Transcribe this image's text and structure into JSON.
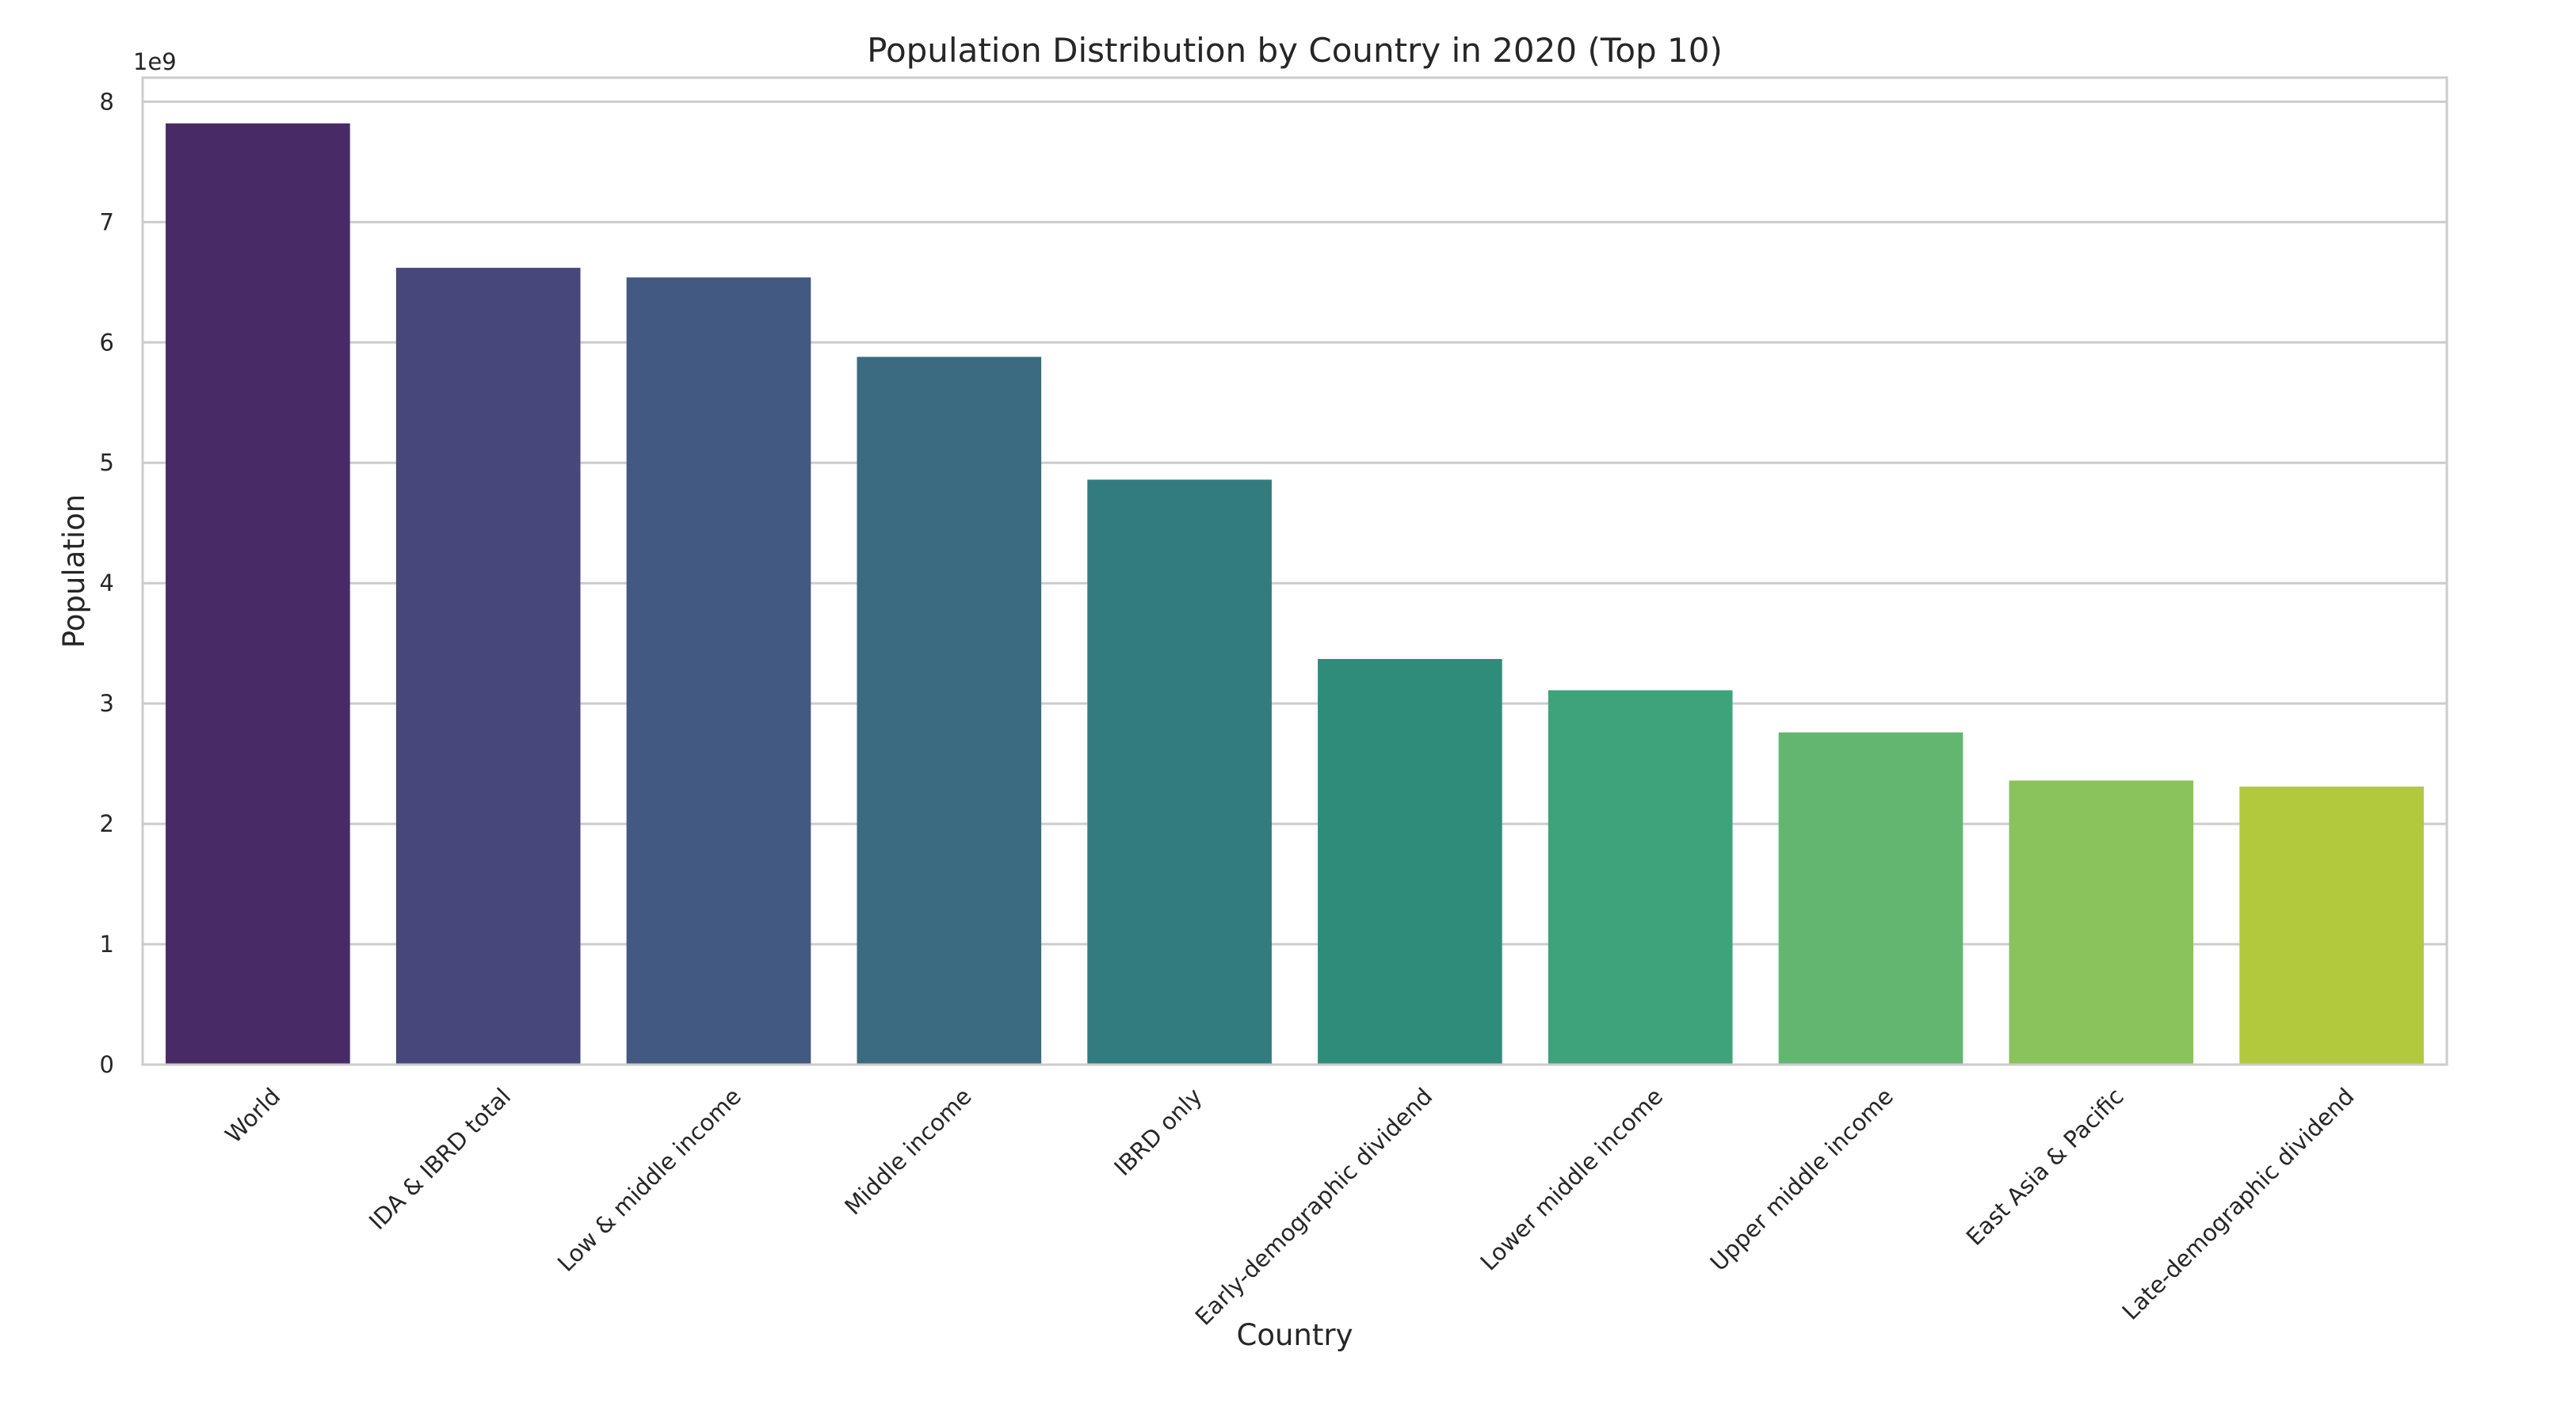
{
  "chart_data": {
    "type": "bar",
    "title": "Population Distribution by Country in 2020 (Top 10)",
    "xlabel": "Country",
    "ylabel": "Population",
    "y_offset_label": "1e9",
    "y_scale": 1000000000,
    "ylim": [
      0,
      8.2
    ],
    "yticks": [
      0,
      1,
      2,
      3,
      4,
      5,
      6,
      7,
      8
    ],
    "ytick_labels": [
      "0",
      "1",
      "2",
      "3",
      "4",
      "5",
      "6",
      "7",
      "8"
    ],
    "grid": true,
    "categories": [
      "World",
      "IDA & IBRD total",
      "Low & middle income",
      "Middle income",
      "IBRD only",
      "Early-demographic dividend",
      "Lower middle income",
      "Upper middle income",
      "East Asia & Pacific",
      "Late-demographic dividend"
    ],
    "values": [
      7.82,
      6.62,
      6.54,
      5.88,
      4.86,
      3.37,
      3.11,
      2.76,
      2.36,
      2.31
    ],
    "colors": [
      "#482a67",
      "#48477b",
      "#425a81",
      "#3a6b80",
      "#327c80",
      "#2f8c7b",
      "#3ea37a",
      "#63b670",
      "#8ac25b",
      "#b2c93d"
    ],
    "grid_color": "#cccccc",
    "frame_color": "#cccccc"
  }
}
